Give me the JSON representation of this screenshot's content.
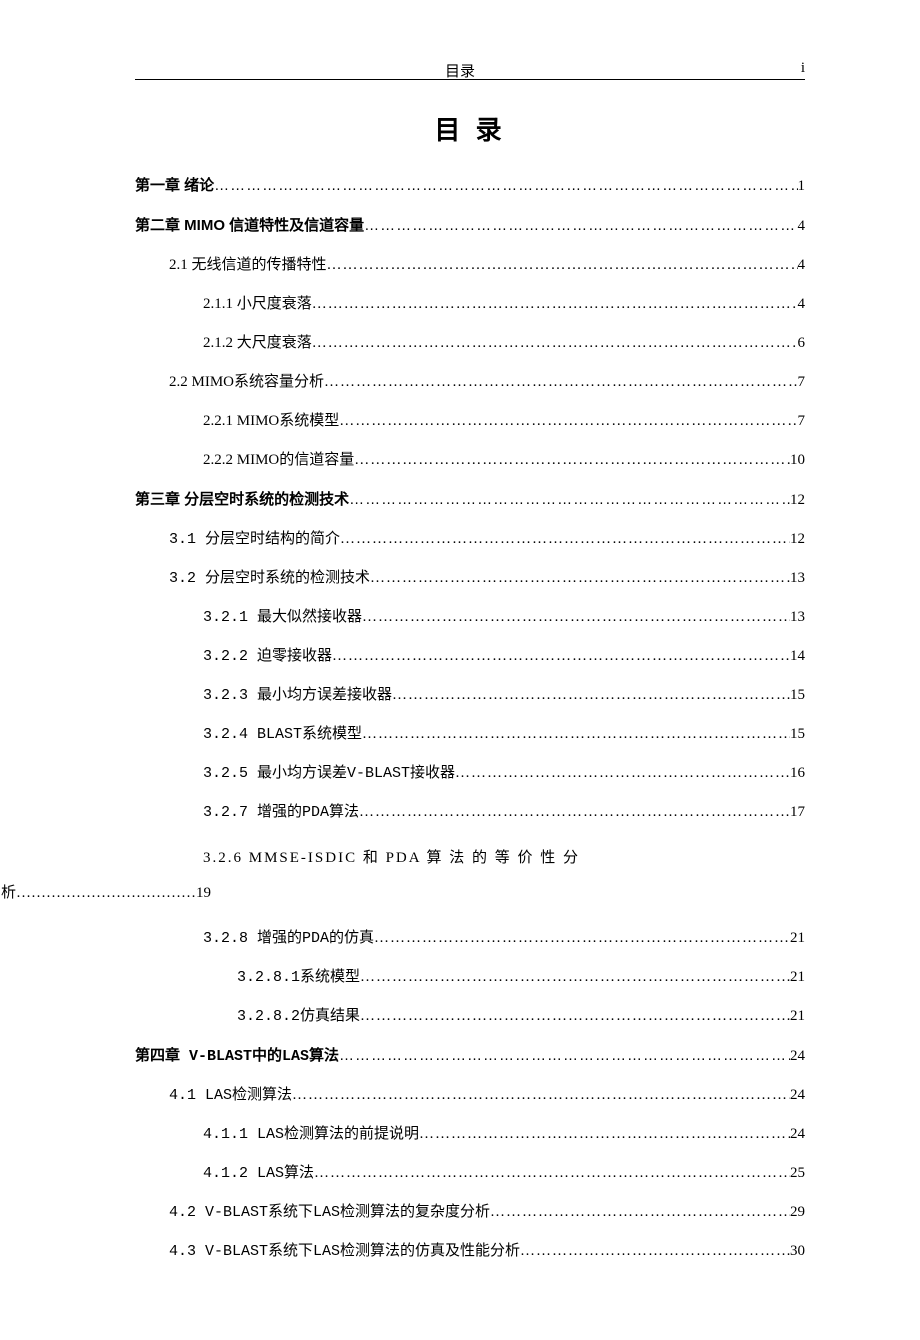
{
  "header": {
    "center": "目录",
    "right": "i"
  },
  "title": "目 录",
  "entries": [
    {
      "level": 1,
      "label": "第一章  绪论",
      "page": "1"
    },
    {
      "level": 1,
      "label": "第二章  MIMO 信道特性及信道容量",
      "page": "4"
    },
    {
      "level": 2,
      "label": "2.1 无线信道的传播特性",
      "page": "4"
    },
    {
      "level": 3,
      "label": "2.1.1 小尺度衰落",
      "page": "4"
    },
    {
      "level": 3,
      "label": "2.1.2 大尺度衰落",
      "page": "6"
    },
    {
      "level": 2,
      "label": "2.2 MIMO系统容量分析",
      "page": "7"
    },
    {
      "level": 3,
      "label": "2.2.1 MIMO系统模型",
      "page": "7"
    },
    {
      "level": 3,
      "label": "2.2.2 MIMO的信道容量",
      "page": "10"
    },
    {
      "level": 1,
      "label": "第三章  分层空时系统的检测技术",
      "page": "12"
    },
    {
      "level": 2,
      "label": "3.1 分层空时结构的简介",
      "page": "12",
      "mono": true
    },
    {
      "level": 2,
      "label": "3.2 分层空时系统的检测技术",
      "page": "13",
      "mono": true
    },
    {
      "level": 3,
      "label": "3.2.1 最大似然接收器",
      "page": "13",
      "mono": true
    },
    {
      "level": 3,
      "label": "3.2.2 迫零接收器",
      "page": "14",
      "mono": true
    },
    {
      "level": 3,
      "label": "3.2.3 最小均方误差接收器",
      "page": "15",
      "mono": true
    },
    {
      "level": 3,
      "label": "3.2.4 BLAST系统模型",
      "page": "15",
      "mono": true
    },
    {
      "level": 3,
      "label": "3.2.5 最小均方误差V-BLAST接收器",
      "page": "16",
      "mono": true
    },
    {
      "level": 3,
      "label": "3.2.7 增强的PDA算法",
      "page": "17",
      "mono": true
    },
    {
      "level": 3,
      "wrap": true,
      "label_line1": "3.2.6   MMSE-ISDIC   和   PDA   算 法 的 等 价 性 分",
      "label_line2": "析………………………………19"
    },
    {
      "level": 3,
      "label": "3.2.8 增强的PDA的仿真",
      "page": "21",
      "mono": true
    },
    {
      "level": 4,
      "label": "3.2.8.1系统模型",
      "page": "21",
      "mono": true
    },
    {
      "level": 4,
      "label": "3.2.8.2仿真结果",
      "page": "21",
      "mono": true
    },
    {
      "level": 1,
      "label": "第四章 V-BLAST中的LAS算法",
      "page": "24",
      "mono": true
    },
    {
      "level": 2,
      "label": "4.1 LAS检测算法",
      "page": "24",
      "mono": true
    },
    {
      "level": 3,
      "label": "4.1.1 LAS检测算法的前提说明",
      "page": "24",
      "mono": true
    },
    {
      "level": 3,
      "label": "4.1.2 LAS算法",
      "page": "25",
      "mono": true
    },
    {
      "level": 2,
      "label": "4.2  V-BLAST系统下LAS检测算法的复杂度分析",
      "page": "29",
      "mono": true
    },
    {
      "level": 2,
      "label": "4.3  V-BLAST系统下LAS检测算法的仿真及性能分析",
      "page": "30",
      "mono": true
    }
  ]
}
